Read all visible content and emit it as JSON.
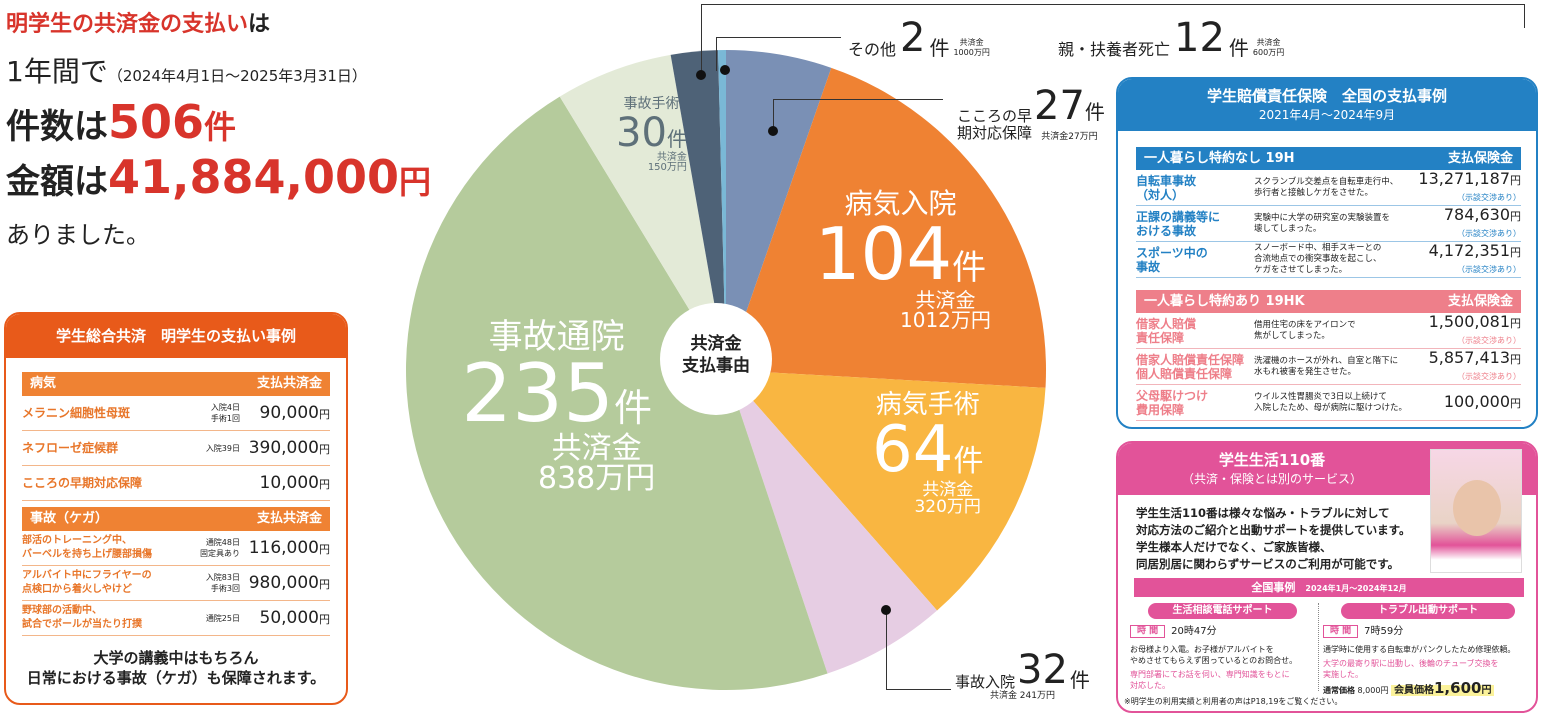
{
  "headline": {
    "l1_red": "明学生の共済金の支払い",
    "l1_tail": "は",
    "l2": "1年間で",
    "l2_period": "（2024年4月1日～2025年3月31日）",
    "count_label": "件数は",
    "count": "506",
    "count_unit": "件",
    "amount_label": "金額は",
    "amount": "41,884,000",
    "amount_unit": "円",
    "l5": "ありました。"
  },
  "chart_data": {
    "type": "pie",
    "title": "共済金支払事由",
    "center_label": [
      "共済金",
      "支払事由"
    ],
    "unit": "件",
    "total": 506,
    "slices": [
      {
        "name": "こころの早期対応保障",
        "value": 27,
        "amount": "共済金27万円",
        "color": "#7a90b5"
      },
      {
        "name": "病気入院",
        "value": 104,
        "amount": "1012万円",
        "color": "#ef8233"
      },
      {
        "name": "病気手術",
        "value": 64,
        "amount": "320万円",
        "color": "#f9b641"
      },
      {
        "name": "事故入院",
        "value": 32,
        "amount": "共済金 241万円",
        "color": "#e6cde3"
      },
      {
        "name": "事故通院",
        "value": 235,
        "amount": "838万円",
        "color": "#b5cb9c"
      },
      {
        "name": "事故手術",
        "value": 30,
        "amount": "150万円",
        "color": "#e3ead7"
      },
      {
        "name": "親・扶養者死亡",
        "value": 12,
        "amount": "600万円",
        "color": "#4e6277"
      },
      {
        "name": "その他",
        "value": 2,
        "amount": "1000万円",
        "color": "#7ab8d6"
      }
    ],
    "amount_label": "共済金",
    "count_unit": "件"
  },
  "kyosai": {
    "title": "学生総合共済　明学生の支払い事例",
    "illness_header": "病気",
    "injury_header": "事故（ケガ）",
    "pay_header": "支払共済金",
    "illness": [
      {
        "name": "メラニン細胞性母斑",
        "note": [
          "入院4日",
          "手術1回"
        ],
        "amount": "90,000"
      },
      {
        "name": "ネフローゼ症候群",
        "note": [
          "入院39日"
        ],
        "amount": "390,000"
      },
      {
        "name": "こころの早期対応保障",
        "note": [],
        "amount": "10,000"
      }
    ],
    "injury": [
      {
        "name": [
          "部活のトレーニング中、",
          "バーベルを持ち上げ腰部損傷"
        ],
        "note": [
          "通院48日",
          "固定具あり"
        ],
        "amount": "116,000"
      },
      {
        "name": [
          "アルバイト中にフライヤーの",
          "点検口から着火しやけど"
        ],
        "note": [
          "入院83日",
          "手術3回"
        ],
        "amount": "980,000"
      },
      {
        "name": [
          "野球部の活動中、",
          "試合でボールが当たり打撲"
        ],
        "note": [
          "通院25日"
        ],
        "amount": "50,000"
      }
    ],
    "yen": "円",
    "footer": [
      "大学の講義中はもちろん",
      "日常における事故（ケガ）も保障されます。"
    ]
  },
  "baisho": {
    "title": "学生賠償責任保険　全国の支払事例",
    "period": "2021年4月～2024年9月",
    "pay_header": "支払保険金",
    "nego": "（示談交渉あり）",
    "yen": "円",
    "sections": [
      {
        "header": "一人暮らし特約なし 19H",
        "color": "#2381c4",
        "name_color": "#2381c4",
        "rows": [
          {
            "name": [
              "自転車事故",
              "（対人）"
            ],
            "desc": [
              "スクランブル交差点を自転車走行中、",
              "歩行者と接触しケガをさせた。"
            ],
            "amount": "13,271,187",
            "nego": true
          },
          {
            "name": [
              "正課の講義等に",
              "おける事故"
            ],
            "desc": [
              "実験中に大学の研究室の実験装置を",
              "壊してしまった。"
            ],
            "amount": "784,630",
            "nego": true
          },
          {
            "name": [
              "スポーツ中の",
              "事故"
            ],
            "desc": [
              "スノーボード中、相手スキーとの",
              "合流地点での衝突事故を起こし、",
              "ケガをさせてしまった。"
            ],
            "amount": "4,172,351",
            "nego": true
          }
        ]
      },
      {
        "header": "一人暮らし特約あり 19HK",
        "color": "#ee7f8a",
        "name_color": "#ee7f8a",
        "rows": [
          {
            "name": [
              "借家人賠償",
              "責任保障"
            ],
            "desc": [
              "借用住宅の床をアイロンで",
              "焦がしてしまった。"
            ],
            "amount": "1,500,081",
            "nego": true
          },
          {
            "name": [
              "借家人賠償責任保障",
              "個人賠償責任保障"
            ],
            "desc": [
              "洗濯機のホースが外れ、自室と階下に",
              "水もれ被害を発生させた。"
            ],
            "amount": "5,857,413",
            "nego": true
          },
          {
            "name": [
              "父母駆けつけ",
              "費用保障"
            ],
            "desc": [
              "ウイルス性胃腸炎で3日以上続けて",
              "入院したため、母が病院に駆けつけた。"
            ],
            "amount": "100,000",
            "nego": false
          }
        ]
      }
    ]
  },
  "life": {
    "title": "学生生活110番",
    "subtitle": "（共済・保険とは別のサービス）",
    "desc": [
      "学生生活110番は様々な悩み・トラブルに対して",
      "対応方法のご紹介と出動サポートを提供しています。",
      "学生様本人だけでなく、ご家族皆様、",
      "同居別居に関わらずサービスのご利用が可能です。"
    ],
    "band": "全国事例",
    "band_period": "2024年1月～2024年12月",
    "time_label": "時 間",
    "left": {
      "title": "生活相談電話サポート",
      "time": "20時47分",
      "text": [
        "お母様より入電。お子様がアルバイトを",
        "やめさせてもらえず困っているとのお問合せ。"
      ],
      "pink": [
        "専門部署にてお話を伺い、専門知識をもとに",
        "対応した。"
      ]
    },
    "right": {
      "title": "トラブル出動サポート",
      "time": "7時59分",
      "text": [
        "通学時に使用する自転車がパンクしたため修理依頼。"
      ],
      "pink": [
        "大学の最寄り駅に出動し、後輪のチューブ交換を",
        "実施した。"
      ],
      "normal_label": "通常価格",
      "normal_price": "8,000円",
      "member_label": "会員価格",
      "member_price": "1,600",
      "yen": "円"
    },
    "note": "※明学生の利用実績と利用者の声はP18,19をご覧ください。"
  }
}
